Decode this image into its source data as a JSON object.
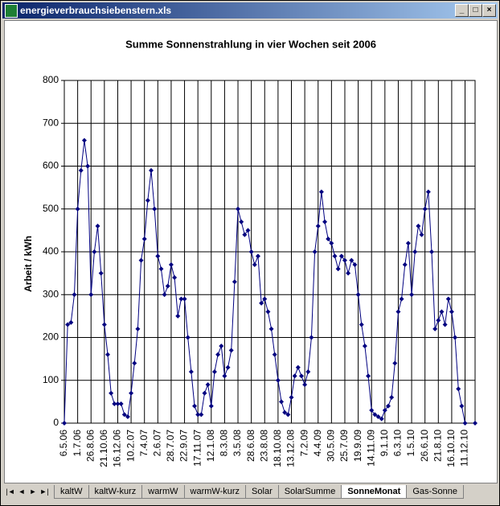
{
  "window": {
    "title": "energieverbrauchsiebenstern.xls"
  },
  "tabs": [
    "kaltW",
    "kaltW-kurz",
    "warmW",
    "warmW-kurz",
    "Solar",
    "SolarSumme",
    "SonneMonat",
    "Gas-Sonne"
  ],
  "active_tab": 6,
  "chart_data": {
    "type": "line",
    "title": "Summe Sonnenstrahlung in vier Wochen  seit 2006",
    "y_label": "Arbeit / kWh",
    "categories": [
      "6.5.06",
      null,
      null,
      null,
      "1.7.06",
      null,
      null,
      null,
      "26.8.06",
      null,
      null,
      null,
      "21.10.06",
      null,
      null,
      null,
      "16.12.06",
      null,
      null,
      null,
      "10.2.07",
      null,
      null,
      null,
      "7.4.07",
      null,
      null,
      null,
      "2.6.07",
      null,
      null,
      null,
      "28.7.07",
      null,
      null,
      null,
      "22.9.07",
      null,
      null,
      null,
      "17.11.07",
      null,
      null,
      null,
      "12.1.08",
      null,
      null,
      null,
      "8.3.08",
      null,
      null,
      null,
      "3.5.08",
      null,
      null,
      null,
      "28.6.08",
      null,
      null,
      null,
      "23.8.08",
      null,
      null,
      null,
      "18.10.08",
      null,
      null,
      null,
      "13.12.08",
      null,
      null,
      null,
      "7.2.09",
      null,
      null,
      null,
      "4.4.09",
      null,
      null,
      null,
      "30.5.09",
      null,
      null,
      null,
      "25.7.09",
      null,
      null,
      null,
      "19.9.09",
      null,
      null,
      null,
      "14.11.09",
      null,
      null,
      null,
      "9.1.10",
      null,
      null,
      null,
      "6.3.10",
      null,
      null,
      null,
      "1.5.10",
      null,
      null,
      null,
      "26.6.10",
      null,
      null,
      null,
      "21.8.10",
      null,
      null,
      null,
      "16.10.10",
      null,
      null,
      null,
      "11.12.10",
      null,
      null,
      null
    ],
    "series": [
      {
        "name": "Summe",
        "color": "#000080",
        "values": [
          0,
          230,
          235,
          300,
          500,
          590,
          660,
          600,
          300,
          400,
          460,
          350,
          230,
          160,
          70,
          45,
          45,
          45,
          20,
          15,
          70,
          140,
          220,
          380,
          430,
          520,
          590,
          500,
          390,
          360,
          300,
          320,
          370,
          340,
          250,
          290,
          290,
          200,
          120,
          40,
          20,
          20,
          70,
          90,
          40,
          120,
          160,
          180,
          110,
          130,
          170,
          330,
          500,
          470,
          440,
          450,
          400,
          370,
          390,
          280,
          290,
          260,
          220,
          160,
          100,
          50,
          25,
          20,
          60,
          110,
          130,
          110,
          90,
          120,
          200,
          400,
          460,
          540,
          470,
          430,
          420,
          390,
          360,
          390,
          380,
          350,
          380,
          370,
          300,
          230,
          180,
          110,
          30,
          20,
          15,
          10,
          30,
          40,
          60,
          140,
          260,
          290,
          370,
          420,
          300,
          400,
          460,
          440,
          500,
          540,
          400,
          220,
          240,
          260,
          230,
          290,
          260,
          200,
          80,
          40,
          0,
          null,
          null,
          0
        ]
      }
    ],
    "ylim": [
      0,
      800
    ],
    "yticks": [
      0,
      100,
      200,
      300,
      400,
      500,
      600,
      700,
      800
    ],
    "grid": true
  }
}
